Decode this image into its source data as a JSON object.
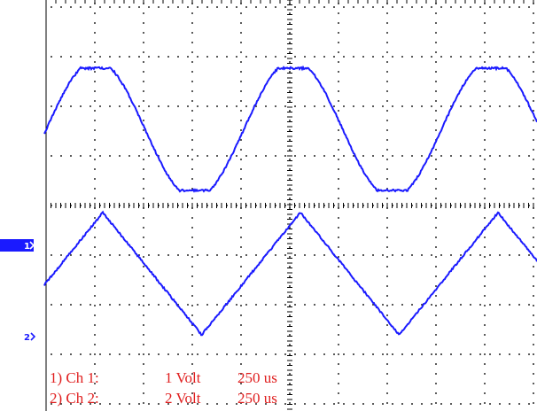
{
  "screen": {
    "background_color": "#ffffff",
    "grid_color": "#000000",
    "trace_color": "#1a1aff",
    "marker_fill_color": "#1a1aff",
    "legend_color": "#e02020"
  },
  "markers": [
    {
      "label": "1",
      "style": "filled"
    },
    {
      "label": "2",
      "style": "outline"
    }
  ],
  "legend": [
    {
      "prefix": "1) Ch 1:",
      "scale": "1 Volt",
      "timebase": "250 us"
    },
    {
      "prefix": "2) Ch 2:",
      "scale": "2 Volt",
      "timebase": "250 us"
    }
  ],
  "channels": [
    {
      "channel": 1,
      "waveform": "sine",
      "color_name": "blue"
    },
    {
      "channel": 2,
      "waveform": "triangle",
      "color_name": "blue"
    }
  ]
}
